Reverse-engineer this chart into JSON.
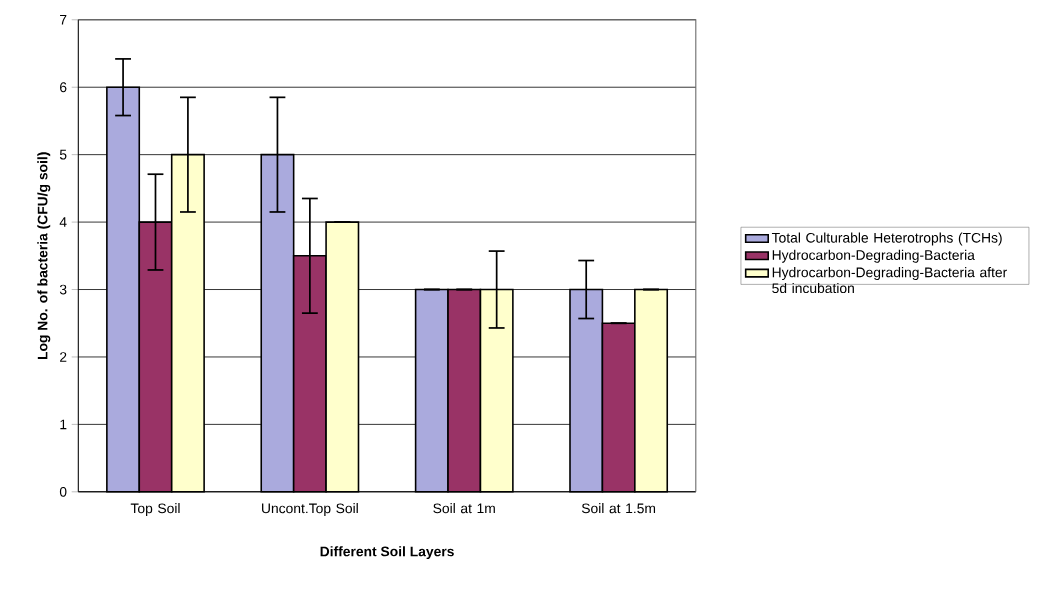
{
  "chart_data": {
    "type": "bar",
    "xlabel": "Different Soil Layers",
    "ylabel": "Log No. of bacteria (CFU/g soil)",
    "categories": [
      "Top Soil",
      "Uncont.Top Soil",
      "Soil at 1m",
      "Soil at 1.5m"
    ],
    "series": [
      {
        "name": "Total Culturable Heterotrophs (TCHs)",
        "color": "#aaaadd",
        "values": [
          6,
          5,
          3,
          3
        ],
        "errors": [
          0.42,
          0.85,
          0,
          0.43
        ]
      },
      {
        "name": "Hydrocarbon-Degrading-Bacteria",
        "color": "#993366",
        "values": [
          4,
          3.5,
          3,
          2.5
        ],
        "errors": [
          0.71,
          0.85,
          0,
          0
        ]
      },
      {
        "name": "Hydrocarbon-Degrading-Bacteria after 5d incubation",
        "color": "#ffffcc",
        "values": [
          5,
          4,
          3,
          3
        ],
        "errors": [
          0.85,
          0,
          0.57,
          0
        ]
      }
    ],
    "ylim": [
      0,
      7
    ],
    "yticks": [
      0,
      1,
      2,
      3,
      4,
      5,
      6,
      7
    ],
    "grid": "y",
    "legend": "right"
  }
}
